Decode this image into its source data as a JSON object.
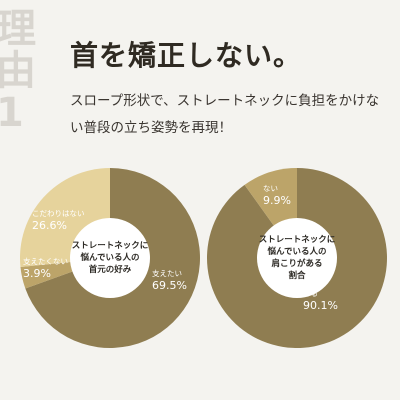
{
  "side_label": [
    "理",
    "由",
    "1"
  ],
  "headline": "首を矯正しない。",
  "description": "スロープ形状で、ストレートネックに負担をかけない普段の立ち姿勢を再現！",
  "colors": {
    "dark_gold": "#8f7d51",
    "light_gold": "#e6d39c",
    "mid_gold": "#bca469",
    "center": "#ffffff"
  },
  "chart_data": [
    {
      "type": "pie",
      "center_label": [
        "ストレートネックに",
        "悩んでいる人の",
        "首元の好み"
      ],
      "slices": [
        {
          "name": "支えたい",
          "value": 69.5,
          "display": "69.5%",
          "color": "#8f7d51"
        },
        {
          "name": "支えたくない",
          "value": 3.9,
          "display": "3.9%",
          "color": "#bca469"
        },
        {
          "name": "こだわりはない",
          "value": 26.6,
          "display": "26.6%",
          "color": "#e6d39c"
        }
      ]
    },
    {
      "type": "pie",
      "center_label": [
        "ストレートネックに",
        "悩んでいる人の",
        "肩こりがある",
        "割合"
      ],
      "slices": [
        {
          "name": "ある",
          "value": 90.1,
          "display": "90.1%",
          "color": "#8f7d51"
        },
        {
          "name": "ない",
          "value": 9.9,
          "display": "9.9%",
          "color": "#bca469"
        }
      ]
    }
  ]
}
